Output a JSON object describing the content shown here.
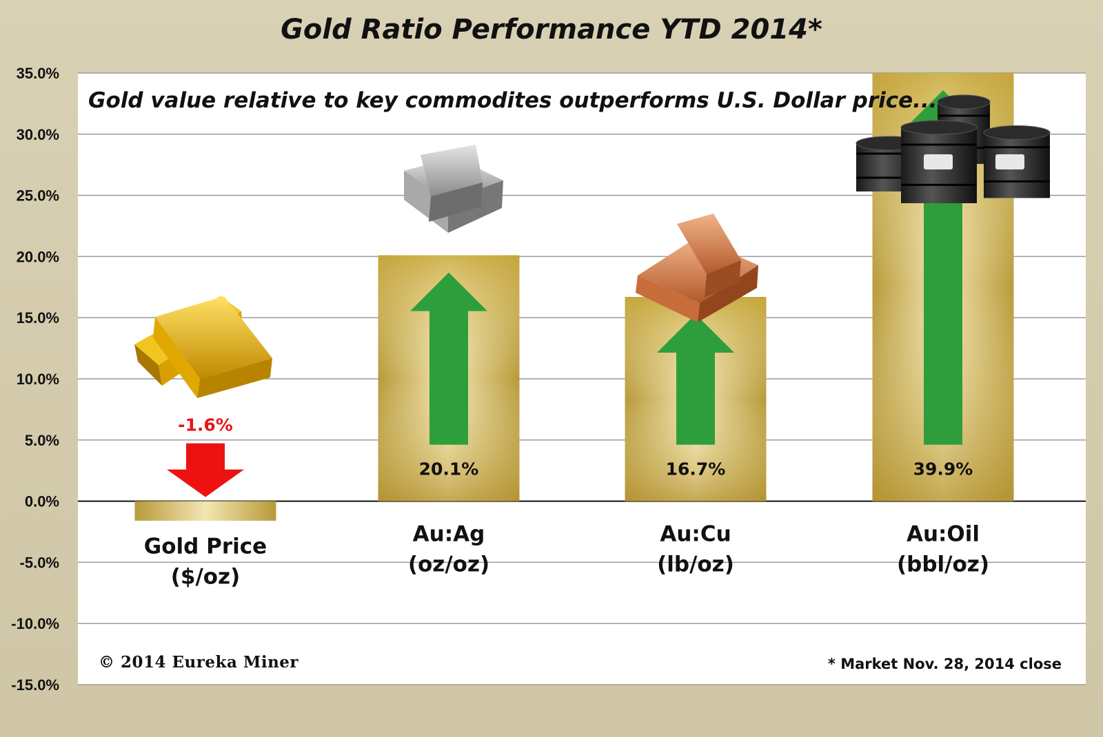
{
  "title": "Gold Ratio Performance YTD 2014*",
  "subtitle": "Gold value relative to key commodites outperforms U.S. Dollar price...",
  "copyright": "© 2014 Eureka Miner",
  "footnote": "* Market Nov. 28,  2014 close",
  "chart_data": {
    "type": "bar",
    "categories": [
      [
        "Gold Price",
        "($/oz)"
      ],
      [
        "Au:Ag",
        "(oz/oz)"
      ],
      [
        "Au:Cu",
        "(lb/oz)"
      ],
      [
        "Au:Oil",
        "(bbl/oz)"
      ]
    ],
    "values": [
      -1.6,
      20.1,
      16.7,
      39.9
    ],
    "value_labels": [
      "-1.6%",
      "20.1%",
      "16.7%",
      "39.9%"
    ],
    "ylim": [
      -15,
      35
    ],
    "yticks": [
      35,
      30,
      25,
      20,
      15,
      10,
      5,
      0,
      -5,
      -10,
      -15
    ],
    "ytick_labels": [
      "35.0%",
      "30.0%",
      "25.0%",
      "20.0%",
      "15.0%",
      "10.0%",
      "5.0%",
      "0.0%",
      "-5.0%",
      "-10.0%",
      "-15.0%"
    ],
    "grid": true,
    "bar_color": "#c9a93a",
    "up_arrow_color": "#2e9e3c",
    "down_arrow_color": "#ee1111",
    "icons": [
      "gold-bars-icon",
      "silver-bars-icon",
      "copper-bars-icon",
      "oil-barrels-icon"
    ]
  }
}
